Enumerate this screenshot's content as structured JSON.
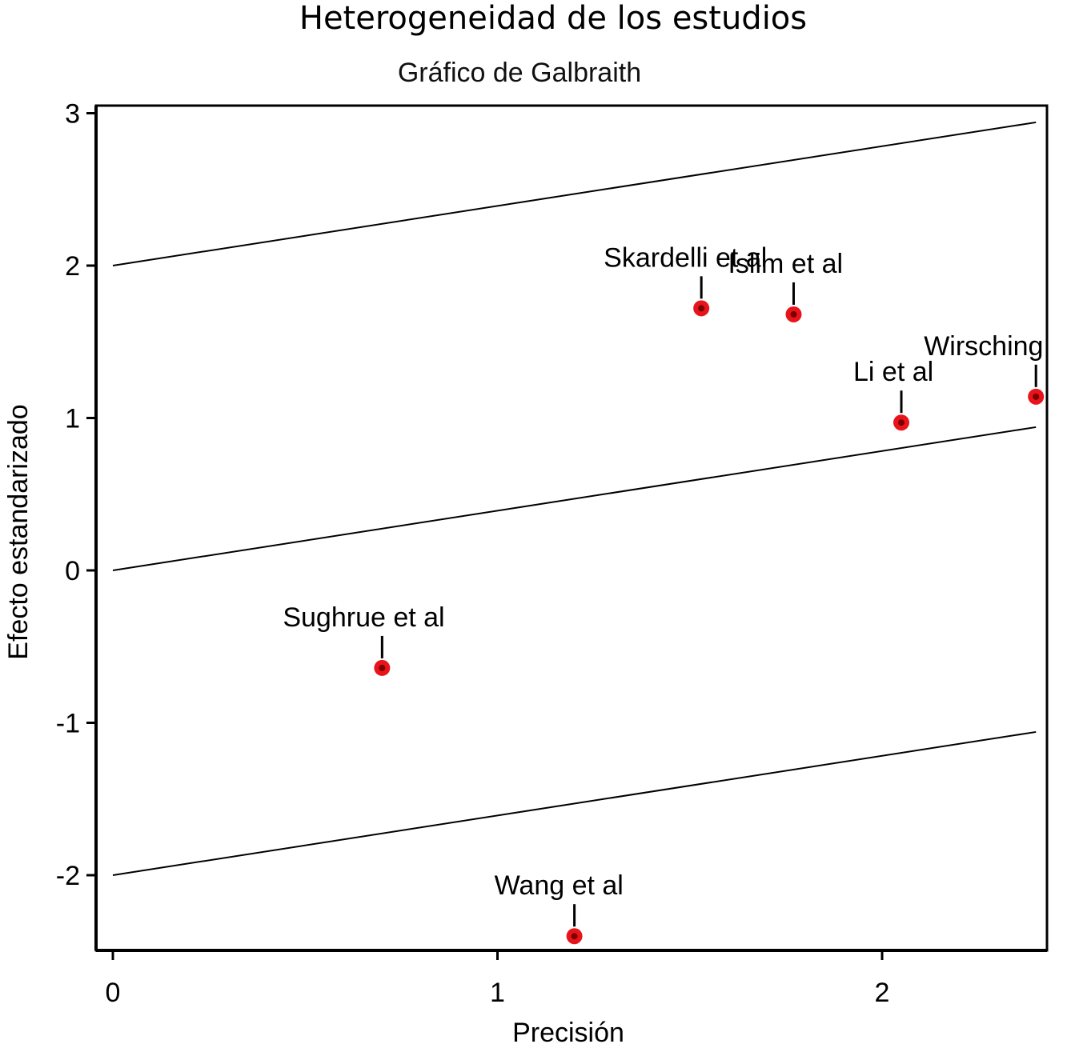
{
  "chart_data": {
    "type": "scatter",
    "title": "Heterogeneidad de los estudios",
    "subtitle": "Gráfico de Galbraith",
    "xlabel": "Precisión",
    "ylabel": "Efecto estandarizado",
    "xlim": [
      0,
      2.45
    ],
    "ylim": [
      -2.5,
      3
    ],
    "x_ticks": [
      0,
      1,
      2
    ],
    "y_ticks": [
      -2,
      -1,
      0,
      1,
      2,
      3
    ],
    "grid": false,
    "lines": [
      {
        "x": [
          0,
          2.4
        ],
        "y": [
          2,
          2.94
        ]
      },
      {
        "x": [
          0,
          2.4
        ],
        "y": [
          0,
          0.94
        ]
      },
      {
        "x": [
          0,
          2.4
        ],
        "y": [
          -2,
          -1.06
        ]
      }
    ],
    "points": [
      {
        "label": "Skardelli et al",
        "x": 1.53,
        "y": 1.72,
        "color": "#e8141b"
      },
      {
        "label": "Islim et al",
        "x": 1.77,
        "y": 1.68,
        "color": "#e8141b"
      },
      {
        "label": "Wirsching",
        "x": 2.4,
        "y": 1.14,
        "color": "#e8141b"
      },
      {
        "label": "Li et al",
        "x": 2.05,
        "y": 0.97,
        "color": "#e8141b"
      },
      {
        "label": "Sughrue et al",
        "x": 0.7,
        "y": -0.64,
        "color": "#e8141b"
      },
      {
        "label": "Wang et al",
        "x": 1.2,
        "y": -2.4,
        "color": "#e8141b"
      }
    ]
  }
}
